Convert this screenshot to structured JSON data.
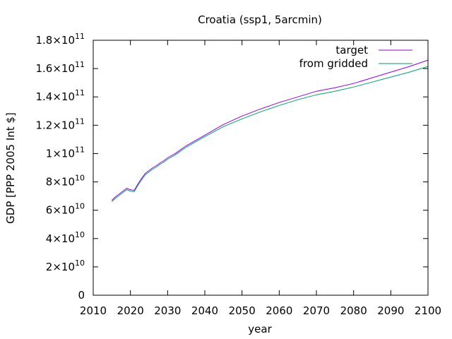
{
  "chart_data": {
    "type": "line",
    "title": "Croatia (ssp1, 5arcmin)",
    "xlabel": "year",
    "ylabel": "GDP [PPP 2005 Int $]",
    "xlim": [
      2010,
      2100
    ],
    "ylim": [
      0,
      180000000000
    ],
    "xticks": [
      "2010",
      "2020",
      "2030",
      "2040",
      "2050",
      "2060",
      "2070",
      "2080",
      "2090",
      "2100"
    ],
    "yticks": [
      {
        "mant": "0",
        "exp": ""
      },
      {
        "mant": "2×10",
        "exp": "10"
      },
      {
        "mant": "4×10",
        "exp": "10"
      },
      {
        "mant": "6×10",
        "exp": "10"
      },
      {
        "mant": "8×10",
        "exp": "10"
      },
      {
        "mant": "1×10",
        "exp": "11"
      },
      {
        "mant": "1.2×10",
        "exp": "11"
      },
      {
        "mant": "1.4×10",
        "exp": "11"
      },
      {
        "mant": "1.6×10",
        "exp": "11"
      },
      {
        "mant": "1.8×10",
        "exp": "11"
      }
    ],
    "grid": false,
    "legend_position": "top-right",
    "series": [
      {
        "name": "target",
        "color": "#9400d3",
        "x": [
          2015,
          2016,
          2017,
          2018,
          2019,
          2020,
          2021,
          2022,
          2023,
          2024,
          2025,
          2026,
          2027,
          2028,
          2029,
          2030,
          2032,
          2035,
          2040,
          2045,
          2050,
          2055,
          2060,
          2065,
          2070,
          2075,
          2080,
          2085,
          2090,
          2095,
          2100
        ],
        "y": [
          67000000000.0,
          69500000000.0,
          71500000000.0,
          73500000000.0,
          75500000000.0,
          74500000000.0,
          74000000000.0,
          78500000000.0,
          82500000000.0,
          86000000000.0,
          88000000000.0,
          90000000000.0,
          91500000000.0,
          93500000000.0,
          95000000000.0,
          97000000000.0,
          100000000000.0,
          105500000000.0,
          113000000000.0,
          120500000000.0,
          126500000000.0,
          131500000000.0,
          136000000000.0,
          140000000000.0,
          144000000000.0,
          146500000000.0,
          149500000000.0,
          153500000000.0,
          157500000000.0,
          161500000000.0,
          166000000000.0
        ]
      },
      {
        "name": "from gridded",
        "color": "#009e73",
        "x": [
          2015,
          2016,
          2017,
          2018,
          2019,
          2020,
          2021,
          2022,
          2023,
          2024,
          2025,
          2026,
          2027,
          2028,
          2029,
          2030,
          2032,
          2035,
          2040,
          2045,
          2050,
          2055,
          2060,
          2065,
          2070,
          2075,
          2080,
          2085,
          2090,
          2095,
          2100
        ],
        "y": [
          66000000000.0,
          68500000000.0,
          70500000000.0,
          72500000000.0,
          74500000000.0,
          73500000000.0,
          73000000000.0,
          77500000000.0,
          81500000000.0,
          85000000000.0,
          87000000000.0,
          89000000000.0,
          90500000000.0,
          92500000000.0,
          94000000000.0,
          96000000000.0,
          99000000000.0,
          104500000000.0,
          112000000000.0,
          119000000000.0,
          124500000000.0,
          129500000000.0,
          134000000000.0,
          138000000000.0,
          141500000000.0,
          144000000000.0,
          147000000000.0,
          150500000000.0,
          154000000000.0,
          157500000000.0,
          161500000000.0
        ]
      }
    ]
  }
}
